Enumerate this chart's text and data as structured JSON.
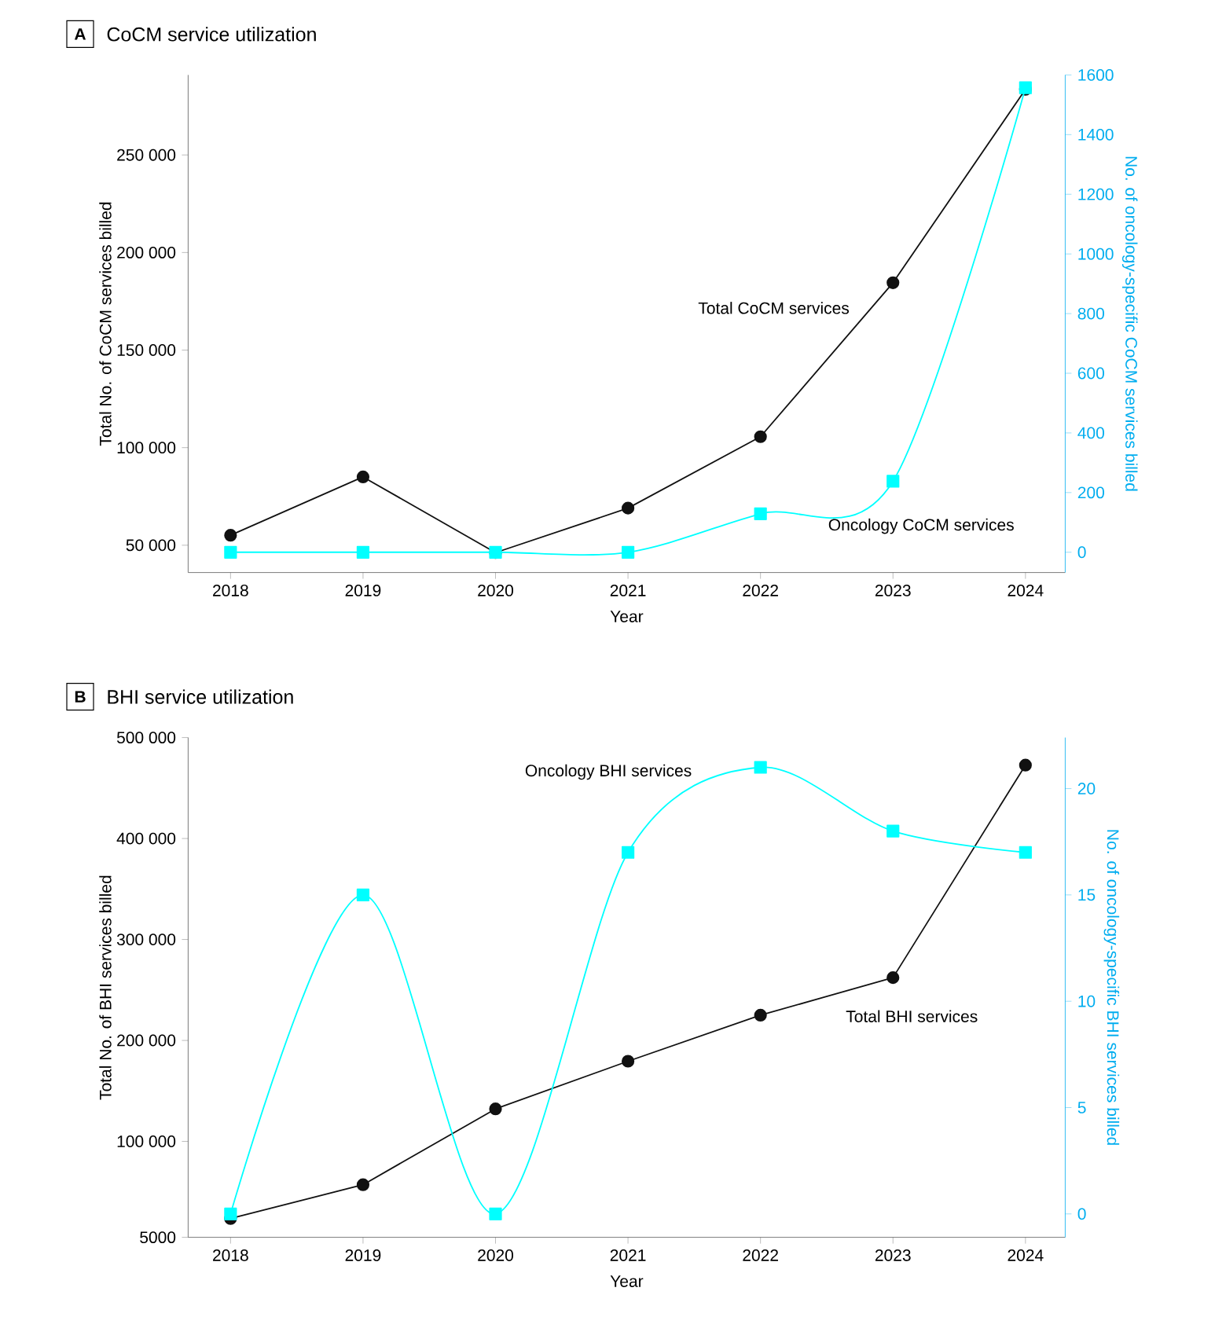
{
  "chart_data": [
    {
      "type": "line",
      "title": "CoCM service utilization",
      "annotations": [
        "A"
      ],
      "xlabel": "Year",
      "ylabel": "Total No. of CoCM services billed",
      "y2label": "No. of oncology-specific CoCM services billed",
      "x": [
        2018,
        2019,
        2020,
        2021,
        2022,
        2023,
        2024
      ],
      "series": [
        {
          "name": "Total CoCM services",
          "color": "#111111",
          "marker": "circle",
          "values": [
            55100,
            85000,
            46200,
            69000,
            105600,
            184500,
            283600
          ]
        },
        {
          "name": "Oncology CoCM services",
          "color": "#00ffff",
          "marker": "square",
          "axis": "y2",
          "values": [
            0,
            0,
            0,
            0,
            129,
            238,
            1557
          ]
        }
      ],
      "xlim": [
        2017.68,
        2024.3
      ],
      "xticks": [
        2018,
        2019,
        2020,
        2021,
        2022,
        2023,
        2024
      ],
      "ylim": [
        36000,
        291000
      ],
      "yticks": [
        {
          "value": 50000,
          "label": "50 000"
        },
        {
          "value": 100000,
          "label": "100 000"
        },
        {
          "value": 150000,
          "label": "150 000"
        },
        {
          "value": 200000,
          "label": "200 000"
        },
        {
          "value": 250000,
          "label": "250 000"
        }
      ],
      "y2lim": [
        -68,
        1600
      ],
      "y2ticks": [
        0,
        200,
        400,
        600,
        800,
        1000,
        1200,
        1400,
        1600
      ],
      "grid": false,
      "legend": false
    },
    {
      "type": "line",
      "title": "BHI service utilization",
      "annotations": [
        "B"
      ],
      "xlabel": "Year",
      "ylabel": "Total No. of BHI services billed",
      "y2label": "No. of oncology-specific BHI services billed",
      "x": [
        2018,
        2019,
        2020,
        2021,
        2022,
        2023,
        2024
      ],
      "series": [
        {
          "name": "Total BHI services",
          "color": "#111111",
          "marker": "circle",
          "values": [
            23600,
            57100,
            132200,
            179400,
            225000,
            262200,
            472700
          ]
        },
        {
          "name": "Oncology BHI services",
          "color": "#00ffff",
          "marker": "square",
          "axis": "y2",
          "values": [
            0,
            15,
            0,
            17,
            21,
            18,
            17
          ]
        }
      ],
      "xlim": [
        2017.68,
        2024.3
      ],
      "xticks": [
        2018,
        2019,
        2020,
        2021,
        2022,
        2023,
        2024
      ],
      "ylim": [
        5000,
        500000
      ],
      "yticks": [
        5000,
        {
          "value": 100000,
          "label": "100 000"
        },
        {
          "value": 200000,
          "label": "200 000"
        },
        {
          "value": 300000,
          "label": "300 000"
        },
        {
          "value": 400000,
          "label": "400 000"
        },
        {
          "value": 500000,
          "label": "500 000"
        }
      ],
      "y2lim": [
        -1.1,
        22.4
      ],
      "y2ticks": [
        0,
        5,
        10,
        15,
        20
      ],
      "grid": false,
      "legend": false
    }
  ]
}
